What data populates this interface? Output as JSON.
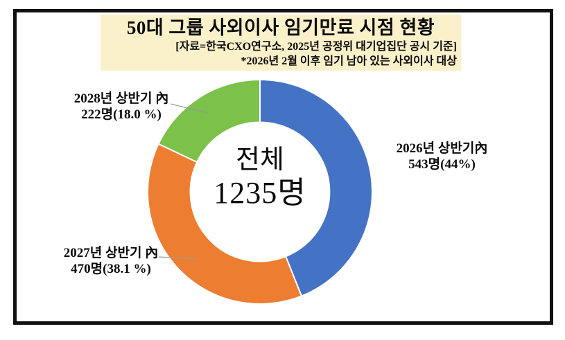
{
  "header": {
    "title": "50대 그룹 사외이사 임기만료 시점 현황",
    "source": "[자료=한국CXO연구소, 2025년 공정위 대기업집단 공시 기준]",
    "note": "*2026년 2월 이후 임기 남아 있는 사외이사 대상",
    "background_color": "#faf0ca"
  },
  "chart_data": {
    "type": "pie",
    "subtype": "donut",
    "title": "50대 그룹 사외이사 임기만료 시점 현황",
    "total": 1235,
    "center_label": {
      "line1": "전체",
      "line2": "1235명"
    },
    "start_angle": "top",
    "direction": "clockwise",
    "inner_radius_ratio": 0.62,
    "legend_position": "none",
    "slices": [
      {
        "id": "y2026",
        "label": "2026년 상반기內",
        "value_label": "543명(44%)",
        "value": 543,
        "percent": 44.0,
        "color": "#4472c4"
      },
      {
        "id": "y2027",
        "label": "2027년 상반기 內",
        "value_label": "470명(38.1 %)",
        "value": 470,
        "percent": 38.1,
        "color": "#ed7d31"
      },
      {
        "id": "y2028",
        "label": "2028년 상반기 內",
        "value_label": "222명(18.0 %)",
        "value": 222,
        "percent": 18.0,
        "color": "#7cc24a"
      }
    ]
  }
}
